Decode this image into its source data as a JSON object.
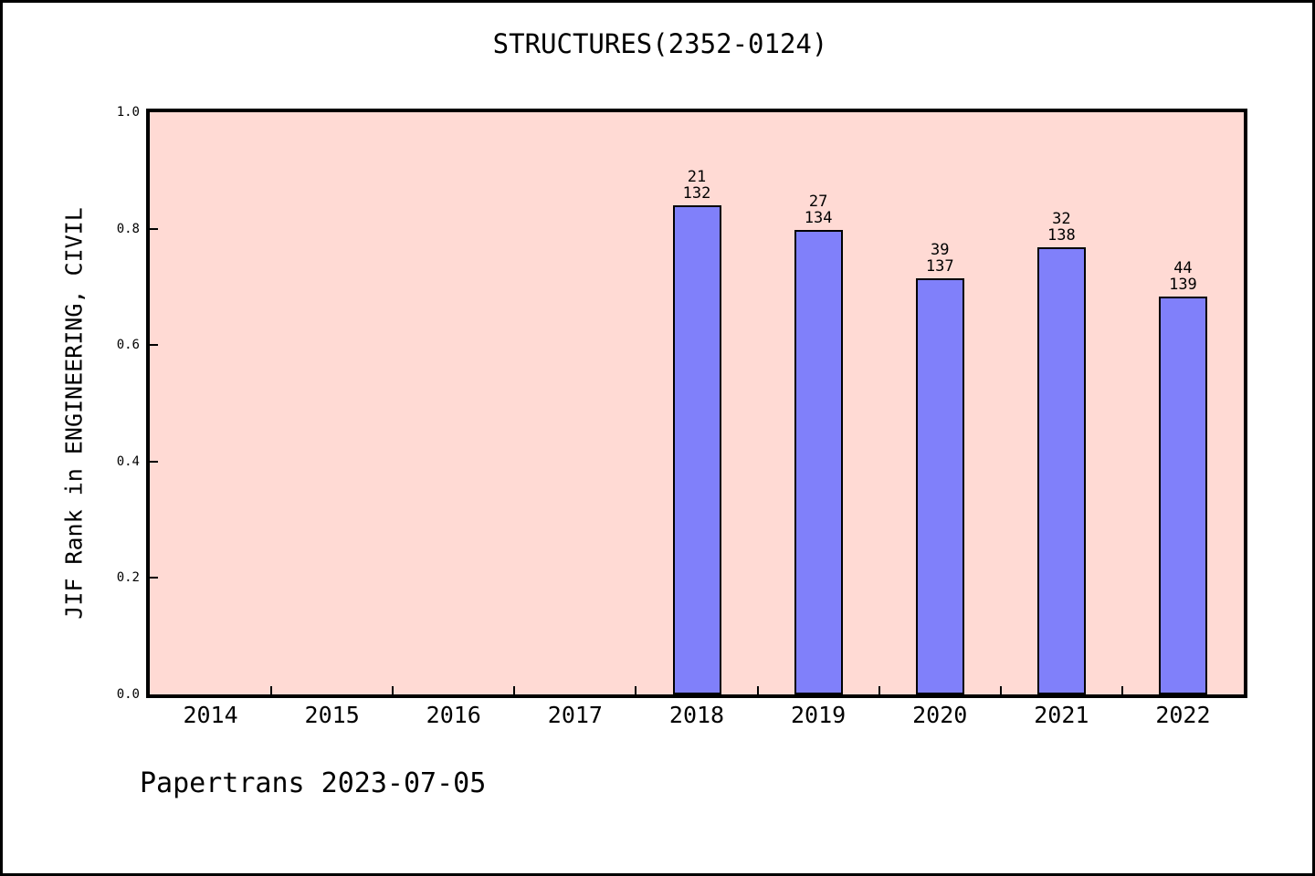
{
  "figure": {
    "footer": "Papertrans 2023-07-05"
  },
  "chart_data": {
    "type": "bar",
    "title": "STRUCTURES(2352-0124)",
    "xlabel": "",
    "ylabel": "JIF Rank in ENGINEERING, CIVIL",
    "ylim": [
      0.0,
      1.0
    ],
    "yticks": [
      0.0,
      0.2,
      0.4,
      0.6,
      0.8,
      1.0
    ],
    "ytick_labels": [
      "0.0",
      "0.2",
      "0.4",
      "0.6",
      "0.8",
      "1.0"
    ],
    "categories": [
      "2014",
      "2015",
      "2016",
      "2017",
      "2018",
      "2019",
      "2020",
      "2021",
      "2022"
    ],
    "bars": [
      {
        "category": "2018",
        "rank": 21,
        "total": 132,
        "value": 0.8409
      },
      {
        "category": "2019",
        "rank": 27,
        "total": 134,
        "value": 0.7985
      },
      {
        "category": "2020",
        "rank": 39,
        "total": 137,
        "value": 0.7153
      },
      {
        "category": "2021",
        "rank": 32,
        "total": 138,
        "value": 0.7681
      },
      {
        "category": "2022",
        "rank": 44,
        "total": 139,
        "value": 0.6835
      }
    ],
    "grid": false,
    "legend": null,
    "colors": {
      "bar_fill": "#8080fa",
      "bar_edge": "#000000",
      "plot_background": "#ffdad4",
      "figure_background": "#ffffff",
      "axis": "#000000"
    }
  }
}
